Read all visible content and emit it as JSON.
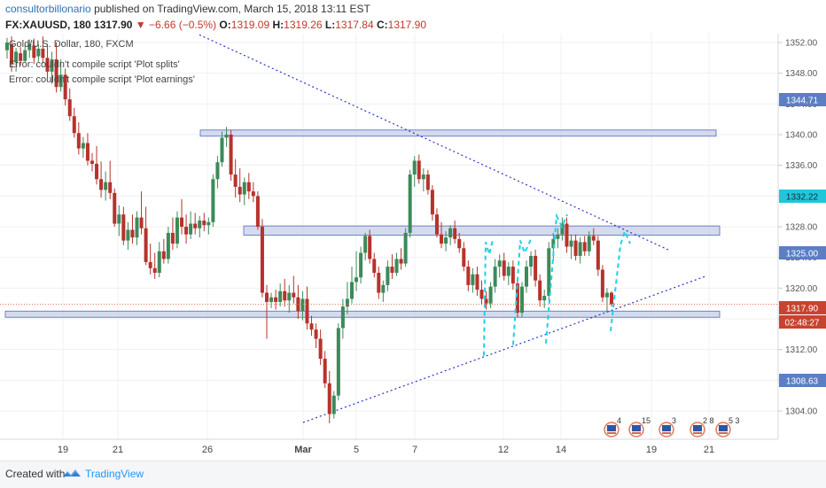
{
  "header": {
    "author": "consultorbillonario",
    "published_text": "published on TradingView.com, March 15, 2018 13:11 EST",
    "symbol": "FX:XAUUSD, 180",
    "last": "1317.90",
    "arrow": "▼",
    "change": "−6.66 (−0.5%)",
    "o_label": "O:",
    "o": "1319.09",
    "h_label": "H:",
    "h": "1319.26",
    "l_label": "L:",
    "l": "1317.84",
    "c_label": "C:",
    "c": "1317.90"
  },
  "overlay": {
    "title": "Gold/U.S. Dollar, 180, FXCM",
    "error1": "Error: couldn't compile script 'Plot splits'",
    "error2": "Error: couldn't compile script 'Plot earnings'"
  },
  "price_labels": {
    "upper_line": "1344.71",
    "zone_mid": "1332.22",
    "zone_low": "1325.00",
    "current": "1317.90",
    "timer": "02:48:27",
    "lower_line": "1308.63"
  },
  "event_badges": [
    "4",
    "15",
    "3",
    "2 8",
    "5 3"
  ],
  "footer": {
    "created_with": "Created with",
    "brand": "TradingView"
  },
  "chart_data": {
    "type": "candlestick",
    "y_axis": {
      "ticks": [
        "1352.00",
        "1348.00",
        "1344.00",
        "1340.00",
        "1336.00",
        "1332.00",
        "1328.00",
        "1324.00",
        "1320.00",
        "1316.00",
        "1312.00",
        "1308.00",
        "1304.00"
      ]
    },
    "x_axis": {
      "ticks": [
        "19",
        "21",
        "26",
        "Mar",
        "5",
        "7",
        "12",
        "14",
        "19",
        "21"
      ]
    },
    "colors": {
      "up": "#3c8a5a",
      "down": "#b7322c",
      "zone_fill": "#c5cfea",
      "zone_stroke": "#6f82c6",
      "trend": "#2b35c8",
      "projection": "#1fd0e6"
    },
    "zones": [
      {
        "from": 1340.6,
        "to": 1339.8
      },
      {
        "from": 1328.1,
        "to": 1326.9
      },
      {
        "from": 1317.0,
        "to": 1316.2
      }
    ],
    "trendlines": [
      {
        "from": [
          "start",
          1353.0
        ],
        "to": [
          "after 19",
          1325.0
        ]
      },
      {
        "from": [
          "Mar",
          1302.5
        ],
        "to": [
          "after 19",
          1321.5
        ]
      }
    ],
    "candles": [
      {
        "o": 1351.0,
        "h": 1352.6,
        "l": 1349.9,
        "c": 1352.0
      },
      {
        "o": 1351.8,
        "h": 1352.8,
        "l": 1348.2,
        "c": 1349.2
      },
      {
        "o": 1349.4,
        "h": 1351.3,
        "l": 1348.2,
        "c": 1350.8
      },
      {
        "o": 1350.6,
        "h": 1351.4,
        "l": 1349.0,
        "c": 1349.6
      },
      {
        "o": 1349.6,
        "h": 1351.7,
        "l": 1349.4,
        "c": 1351.0
      },
      {
        "o": 1351.0,
        "h": 1352.4,
        "l": 1350.0,
        "c": 1351.8
      },
      {
        "o": 1351.6,
        "h": 1352.5,
        "l": 1349.2,
        "c": 1350.0
      },
      {
        "o": 1350.2,
        "h": 1351.8,
        "l": 1349.5,
        "c": 1351.2
      },
      {
        "o": 1351.2,
        "h": 1352.8,
        "l": 1349.3,
        "c": 1350.0
      },
      {
        "o": 1350.0,
        "h": 1351.8,
        "l": 1347.5,
        "c": 1348.2
      },
      {
        "o": 1348.2,
        "h": 1350.8,
        "l": 1346.6,
        "c": 1349.8
      },
      {
        "o": 1349.8,
        "h": 1352.0,
        "l": 1345.5,
        "c": 1346.2
      },
      {
        "o": 1346.2,
        "h": 1349.8,
        "l": 1345.6,
        "c": 1347.8
      },
      {
        "o": 1347.8,
        "h": 1348.6,
        "l": 1343.8,
        "c": 1344.6
      },
      {
        "o": 1344.6,
        "h": 1346.0,
        "l": 1341.8,
        "c": 1342.4
      },
      {
        "o": 1342.4,
        "h": 1343.5,
        "l": 1339.6,
        "c": 1340.2
      },
      {
        "o": 1340.2,
        "h": 1341.6,
        "l": 1337.4,
        "c": 1338.2
      },
      {
        "o": 1338.2,
        "h": 1339.7,
        "l": 1337.0,
        "c": 1338.9
      },
      {
        "o": 1338.9,
        "h": 1340.2,
        "l": 1336.0,
        "c": 1336.6
      },
      {
        "o": 1336.6,
        "h": 1337.6,
        "l": 1335.2,
        "c": 1336.2
      },
      {
        "o": 1336.2,
        "h": 1338.5,
        "l": 1333.5,
        "c": 1334.2
      },
      {
        "o": 1334.2,
        "h": 1336.5,
        "l": 1331.8,
        "c": 1332.8
      },
      {
        "o": 1332.8,
        "h": 1335.2,
        "l": 1331.4,
        "c": 1333.8
      },
      {
        "o": 1333.8,
        "h": 1336.6,
        "l": 1331.6,
        "c": 1332.4
      },
      {
        "o": 1332.4,
        "h": 1333.0,
        "l": 1328.0,
        "c": 1328.4
      },
      {
        "o": 1328.4,
        "h": 1330.8,
        "l": 1326.8,
        "c": 1329.6
      },
      {
        "o": 1329.6,
        "h": 1330.6,
        "l": 1325.6,
        "c": 1326.2
      },
      {
        "o": 1326.2,
        "h": 1328.6,
        "l": 1325.0,
        "c": 1327.6
      },
      {
        "o": 1327.6,
        "h": 1329.6,
        "l": 1325.8,
        "c": 1326.6
      },
      {
        "o": 1326.6,
        "h": 1330.0,
        "l": 1325.6,
        "c": 1329.2
      },
      {
        "o": 1329.2,
        "h": 1332.6,
        "l": 1327.0,
        "c": 1327.8
      },
      {
        "o": 1327.8,
        "h": 1330.6,
        "l": 1323.0,
        "c": 1323.4
      },
      {
        "o": 1323.4,
        "h": 1325.8,
        "l": 1321.8,
        "c": 1322.6
      },
      {
        "o": 1322.6,
        "h": 1324.6,
        "l": 1321.2,
        "c": 1322.0
      },
      {
        "o": 1322.0,
        "h": 1326.0,
        "l": 1321.4,
        "c": 1324.8
      },
      {
        "o": 1324.8,
        "h": 1326.4,
        "l": 1323.2,
        "c": 1323.8
      },
      {
        "o": 1323.8,
        "h": 1328.0,
        "l": 1323.2,
        "c": 1327.2
      },
      {
        "o": 1327.2,
        "h": 1329.2,
        "l": 1325.0,
        "c": 1325.8
      },
      {
        "o": 1325.8,
        "h": 1330.0,
        "l": 1325.2,
        "c": 1329.2
      },
      {
        "o": 1329.2,
        "h": 1331.6,
        "l": 1327.0,
        "c": 1328.0
      },
      {
        "o": 1328.0,
        "h": 1329.6,
        "l": 1325.8,
        "c": 1327.0
      },
      {
        "o": 1327.0,
        "h": 1330.0,
        "l": 1326.4,
        "c": 1328.4
      },
      {
        "o": 1328.4,
        "h": 1329.8,
        "l": 1327.0,
        "c": 1327.8
      },
      {
        "o": 1327.8,
        "h": 1329.4,
        "l": 1326.6,
        "c": 1328.8
      },
      {
        "o": 1328.8,
        "h": 1329.8,
        "l": 1327.4,
        "c": 1328.2
      },
      {
        "o": 1328.2,
        "h": 1329.2,
        "l": 1327.0,
        "c": 1328.6
      },
      {
        "o": 1328.6,
        "h": 1334.8,
        "l": 1328.0,
        "c": 1334.2
      },
      {
        "o": 1334.2,
        "h": 1337.2,
        "l": 1333.0,
        "c": 1336.4
      },
      {
        "o": 1336.4,
        "h": 1340.4,
        "l": 1335.8,
        "c": 1339.6
      },
      {
        "o": 1339.6,
        "h": 1341.0,
        "l": 1338.4,
        "c": 1340.0
      },
      {
        "o": 1340.0,
        "h": 1340.6,
        "l": 1334.0,
        "c": 1334.8
      },
      {
        "o": 1334.8,
        "h": 1336.8,
        "l": 1331.8,
        "c": 1333.2
      },
      {
        "o": 1333.2,
        "h": 1335.6,
        "l": 1331.2,
        "c": 1332.2
      },
      {
        "o": 1332.2,
        "h": 1334.4,
        "l": 1330.8,
        "c": 1333.8
      },
      {
        "o": 1333.8,
        "h": 1335.0,
        "l": 1331.6,
        "c": 1332.6
      },
      {
        "o": 1332.6,
        "h": 1333.8,
        "l": 1331.2,
        "c": 1332.0
      },
      {
        "o": 1332.0,
        "h": 1332.6,
        "l": 1327.6,
        "c": 1328.0
      },
      {
        "o": 1328.0,
        "h": 1329.0,
        "l": 1318.8,
        "c": 1319.4
      },
      {
        "o": 1319.4,
        "h": 1320.4,
        "l": 1313.4,
        "c": 1318.2
      },
      {
        "o": 1318.2,
        "h": 1319.4,
        "l": 1317.4,
        "c": 1318.8
      },
      {
        "o": 1318.8,
        "h": 1319.8,
        "l": 1317.2,
        "c": 1318.2
      },
      {
        "o": 1318.2,
        "h": 1320.6,
        "l": 1317.6,
        "c": 1319.6
      },
      {
        "o": 1319.6,
        "h": 1321.2,
        "l": 1317.6,
        "c": 1318.4
      },
      {
        "o": 1318.4,
        "h": 1320.4,
        "l": 1316.8,
        "c": 1319.4
      },
      {
        "o": 1319.4,
        "h": 1321.6,
        "l": 1318.0,
        "c": 1318.8
      },
      {
        "o": 1318.8,
        "h": 1320.4,
        "l": 1316.0,
        "c": 1317.0
      },
      {
        "o": 1317.0,
        "h": 1319.6,
        "l": 1315.8,
        "c": 1318.6
      },
      {
        "o": 1318.6,
        "h": 1320.2,
        "l": 1314.6,
        "c": 1315.4
      },
      {
        "o": 1315.4,
        "h": 1316.4,
        "l": 1313.8,
        "c": 1314.6
      },
      {
        "o": 1314.6,
        "h": 1315.4,
        "l": 1312.2,
        "c": 1313.4
      },
      {
        "o": 1313.4,
        "h": 1314.6,
        "l": 1310.0,
        "c": 1310.8
      },
      {
        "o": 1310.8,
        "h": 1311.8,
        "l": 1307.0,
        "c": 1307.6
      },
      {
        "o": 1307.6,
        "h": 1309.2,
        "l": 1302.4,
        "c": 1303.6
      },
      {
        "o": 1303.6,
        "h": 1306.6,
        "l": 1303.0,
        "c": 1306.0
      },
      {
        "o": 1306.0,
        "h": 1315.4,
        "l": 1305.4,
        "c": 1314.8
      },
      {
        "o": 1314.8,
        "h": 1318.6,
        "l": 1313.4,
        "c": 1317.6
      },
      {
        "o": 1317.6,
        "h": 1320.8,
        "l": 1316.6,
        "c": 1318.6
      },
      {
        "o": 1318.6,
        "h": 1322.8,
        "l": 1318.0,
        "c": 1320.8
      },
      {
        "o": 1320.8,
        "h": 1324.8,
        "l": 1319.6,
        "c": 1321.4
      },
      {
        "o": 1321.4,
        "h": 1325.4,
        "l": 1320.6,
        "c": 1324.6
      },
      {
        "o": 1324.6,
        "h": 1327.2,
        "l": 1323.6,
        "c": 1326.8
      },
      {
        "o": 1326.8,
        "h": 1327.6,
        "l": 1323.2,
        "c": 1323.8
      },
      {
        "o": 1323.8,
        "h": 1324.6,
        "l": 1321.4,
        "c": 1322.0
      },
      {
        "o": 1322.0,
        "h": 1322.8,
        "l": 1318.6,
        "c": 1319.4
      },
      {
        "o": 1319.4,
        "h": 1321.0,
        "l": 1318.2,
        "c": 1320.4
      },
      {
        "o": 1320.4,
        "h": 1323.6,
        "l": 1319.6,
        "c": 1322.8
      },
      {
        "o": 1322.8,
        "h": 1324.4,
        "l": 1321.2,
        "c": 1322.0
      },
      {
        "o": 1322.0,
        "h": 1324.6,
        "l": 1321.6,
        "c": 1323.8
      },
      {
        "o": 1323.8,
        "h": 1325.2,
        "l": 1322.4,
        "c": 1323.2
      },
      {
        "o": 1323.2,
        "h": 1327.8,
        "l": 1322.8,
        "c": 1327.2
      },
      {
        "o": 1327.2,
        "h": 1335.4,
        "l": 1326.6,
        "c": 1334.8
      },
      {
        "o": 1334.8,
        "h": 1337.2,
        "l": 1333.2,
        "c": 1336.6
      },
      {
        "o": 1336.6,
        "h": 1337.4,
        "l": 1333.6,
        "c": 1334.2
      },
      {
        "o": 1334.2,
        "h": 1335.6,
        "l": 1332.6,
        "c": 1334.8
      },
      {
        "o": 1334.8,
        "h": 1335.4,
        "l": 1332.2,
        "c": 1332.8
      },
      {
        "o": 1332.8,
        "h": 1333.4,
        "l": 1328.8,
        "c": 1329.6
      },
      {
        "o": 1329.6,
        "h": 1330.4,
        "l": 1326.6,
        "c": 1327.0
      },
      {
        "o": 1327.0,
        "h": 1328.6,
        "l": 1325.2,
        "c": 1325.8
      },
      {
        "o": 1325.8,
        "h": 1327.4,
        "l": 1324.8,
        "c": 1326.6
      },
      {
        "o": 1326.6,
        "h": 1328.2,
        "l": 1325.6,
        "c": 1327.8
      },
      {
        "o": 1327.8,
        "h": 1328.8,
        "l": 1325.8,
        "c": 1326.4
      },
      {
        "o": 1326.4,
        "h": 1327.2,
        "l": 1324.6,
        "c": 1325.2
      },
      {
        "o": 1325.2,
        "h": 1326.0,
        "l": 1322.2,
        "c": 1322.8
      },
      {
        "o": 1322.8,
        "h": 1323.6,
        "l": 1319.6,
        "c": 1320.4
      },
      {
        "o": 1320.4,
        "h": 1322.6,
        "l": 1319.4,
        "c": 1321.8
      },
      {
        "o": 1321.8,
        "h": 1322.8,
        "l": 1319.0,
        "c": 1319.8
      },
      {
        "o": 1319.8,
        "h": 1321.0,
        "l": 1317.8,
        "c": 1318.6
      },
      {
        "o": 1318.6,
        "h": 1319.6,
        "l": 1317.2,
        "c": 1318.0
      },
      {
        "o": 1318.0,
        "h": 1320.8,
        "l": 1317.4,
        "c": 1320.2
      },
      {
        "o": 1320.2,
        "h": 1323.8,
        "l": 1319.4,
        "c": 1322.8
      },
      {
        "o": 1322.8,
        "h": 1324.4,
        "l": 1321.4,
        "c": 1323.6
      },
      {
        "o": 1323.6,
        "h": 1324.6,
        "l": 1321.0,
        "c": 1321.6
      },
      {
        "o": 1321.6,
        "h": 1323.4,
        "l": 1320.4,
        "c": 1322.8
      },
      {
        "o": 1322.8,
        "h": 1323.6,
        "l": 1319.8,
        "c": 1320.6
      },
      {
        "o": 1320.6,
        "h": 1321.4,
        "l": 1316.2,
        "c": 1316.8
      },
      {
        "o": 1316.8,
        "h": 1320.8,
        "l": 1316.2,
        "c": 1320.2
      },
      {
        "o": 1320.2,
        "h": 1323.6,
        "l": 1319.4,
        "c": 1322.8
      },
      {
        "o": 1322.8,
        "h": 1324.8,
        "l": 1321.6,
        "c": 1324.2
      },
      {
        "o": 1324.2,
        "h": 1325.0,
        "l": 1320.2,
        "c": 1321.0
      },
      {
        "o": 1321.0,
        "h": 1321.8,
        "l": 1317.6,
        "c": 1318.4
      },
      {
        "o": 1318.4,
        "h": 1319.8,
        "l": 1317.4,
        "c": 1319.0
      },
      {
        "o": 1319.0,
        "h": 1326.0,
        "l": 1318.4,
        "c": 1325.2
      },
      {
        "o": 1325.2,
        "h": 1327.2,
        "l": 1323.6,
        "c": 1326.4
      },
      {
        "o": 1326.4,
        "h": 1327.8,
        "l": 1325.2,
        "c": 1327.0
      },
      {
        "o": 1327.0,
        "h": 1329.2,
        "l": 1326.2,
        "c": 1328.4
      },
      {
        "o": 1328.4,
        "h": 1329.2,
        "l": 1324.6,
        "c": 1325.4
      },
      {
        "o": 1325.4,
        "h": 1327.0,
        "l": 1323.8,
        "c": 1326.2
      },
      {
        "o": 1326.2,
        "h": 1327.0,
        "l": 1323.6,
        "c": 1324.2
      },
      {
        "o": 1324.2,
        "h": 1326.6,
        "l": 1323.2,
        "c": 1326.0
      },
      {
        "o": 1326.0,
        "h": 1326.8,
        "l": 1324.2,
        "c": 1324.8
      },
      {
        "o": 1324.8,
        "h": 1327.4,
        "l": 1324.2,
        "c": 1326.8
      },
      {
        "o": 1326.8,
        "h": 1327.8,
        "l": 1325.6,
        "c": 1326.2
      },
      {
        "o": 1326.2,
        "h": 1326.8,
        "l": 1321.6,
        "c": 1322.4
      },
      {
        "o": 1322.4,
        "h": 1323.0,
        "l": 1318.2,
        "c": 1318.8
      },
      {
        "o": 1318.8,
        "h": 1320.0,
        "l": 1316.8,
        "c": 1319.4
      },
      {
        "o": 1319.4,
        "h": 1319.6,
        "l": 1317.6,
        "c": 1317.9
      }
    ]
  }
}
